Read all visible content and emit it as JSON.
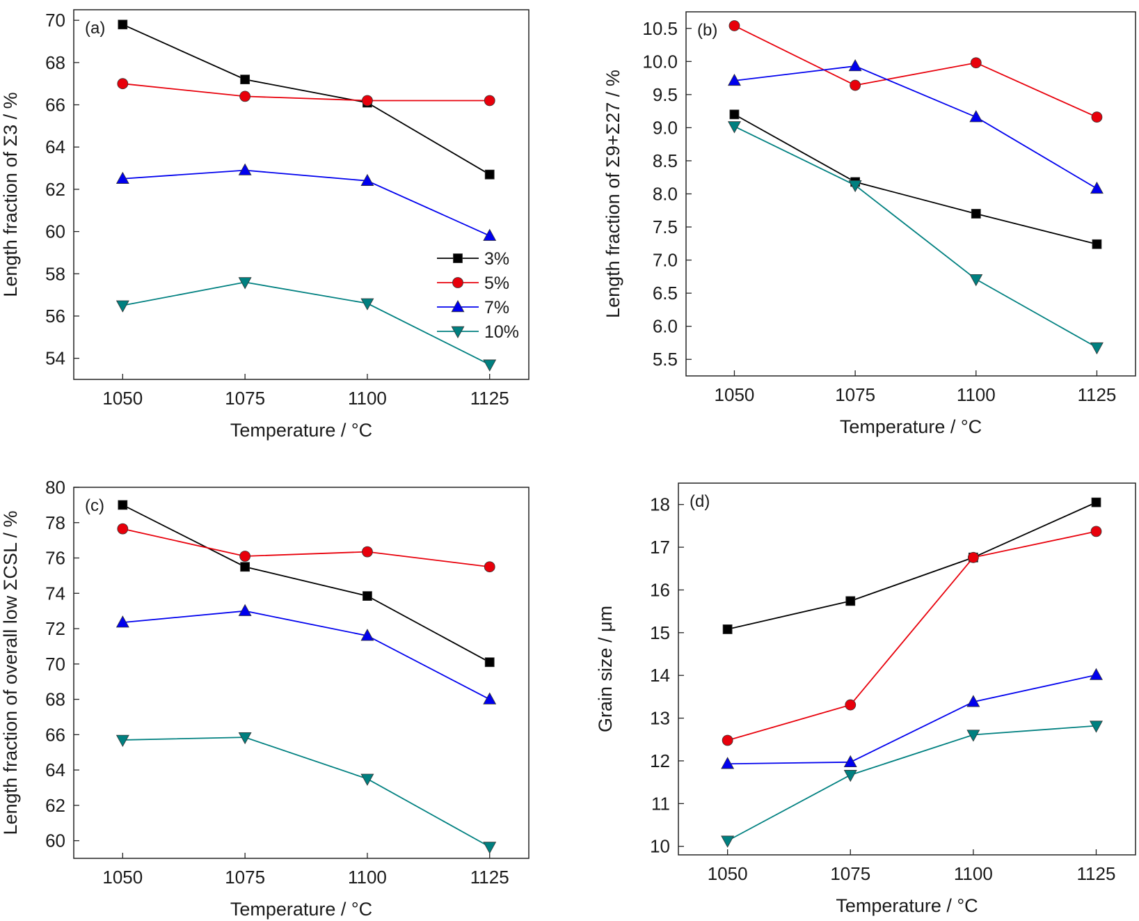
{
  "series_style": [
    {
      "color": "#000000",
      "marker": "square"
    },
    {
      "color": "#e8000b",
      "marker": "circle"
    },
    {
      "color": "#0000ee",
      "marker": "triangle-up"
    },
    {
      "color": "#008080",
      "marker": "triangle-down"
    }
  ],
  "legend": {
    "placement": "center-right of panel (a)",
    "labels": [
      "3%",
      "5%",
      "7%",
      "10%"
    ]
  },
  "chart_data": [
    {
      "type": "line",
      "panel_label": "(a)",
      "xlabel": "Temperature / °C",
      "ylabel": "Length fraction of Σ3 / %",
      "x": [
        1050,
        1075,
        1100,
        1125
      ],
      "xlim": [
        1040,
        1133
      ],
      "ylim": [
        53,
        70.5
      ],
      "yticks": [
        "54",
        "56",
        "58",
        "60",
        "62",
        "64",
        "66",
        "68",
        "70"
      ],
      "xticks": [
        "1050",
        "1075",
        "1100",
        "1125"
      ],
      "series": [
        {
          "name": "3%",
          "values": [
            69.8,
            67.2,
            66.1,
            62.7
          ]
        },
        {
          "name": "5%",
          "values": [
            67.0,
            66.4,
            66.2,
            66.2
          ]
        },
        {
          "name": "7%",
          "values": [
            62.5,
            62.9,
            62.4,
            59.8
          ]
        },
        {
          "name": "10%",
          "values": [
            56.5,
            57.6,
            56.6,
            53.7
          ]
        }
      ]
    },
    {
      "type": "line",
      "panel_label": "(b)",
      "xlabel": "Temperature / °C",
      "ylabel": "Length fraction of Σ9+Σ27 / %",
      "x": [
        1050,
        1075,
        1100,
        1125
      ],
      "xlim": [
        1040,
        1133
      ],
      "ylim": [
        5.25,
        10.75
      ],
      "yticks": [
        "5.5",
        "6.0",
        "6.5",
        "7.0",
        "7.5",
        "8.0",
        "8.5",
        "9.0",
        "9.5",
        "10.0",
        "10.5"
      ],
      "xticks": [
        "1050",
        "1075",
        "1100",
        "1125"
      ],
      "series": [
        {
          "name": "3%",
          "values": [
            9.2,
            8.18,
            7.7,
            7.24
          ]
        },
        {
          "name": "5%",
          "values": [
            10.54,
            9.64,
            9.98,
            9.16
          ]
        },
        {
          "name": "7%",
          "values": [
            9.71,
            9.93,
            9.16,
            8.08
          ]
        },
        {
          "name": "10%",
          "values": [
            9.02,
            8.13,
            6.71,
            5.68
          ]
        }
      ]
    },
    {
      "type": "line",
      "panel_label": "(c)",
      "xlabel": "Temperature / °C",
      "ylabel": "Length fraction of overall low ΣCSL / %",
      "x": [
        1050,
        1075,
        1100,
        1125
      ],
      "xlim": [
        1040,
        1133
      ],
      "ylim": [
        59,
        80
      ],
      "yticks": [
        "60",
        "62",
        "64",
        "66",
        "68",
        "70",
        "72",
        "74",
        "76",
        "78",
        "80"
      ],
      "xticks": [
        "1050",
        "1075",
        "1100",
        "1125"
      ],
      "series": [
        {
          "name": "3%",
          "values": [
            79.0,
            75.5,
            73.85,
            70.1
          ]
        },
        {
          "name": "5%",
          "values": [
            77.65,
            76.1,
            76.35,
            75.5
          ]
        },
        {
          "name": "7%",
          "values": [
            72.35,
            73.0,
            71.6,
            68.0
          ]
        },
        {
          "name": "10%",
          "values": [
            65.7,
            65.85,
            63.5,
            59.65
          ]
        }
      ]
    },
    {
      "type": "line",
      "panel_label": "(d)",
      "xlabel": "Temperature / °C",
      "ylabel": "Grain size / μm",
      "x": [
        1050,
        1075,
        1100,
        1125
      ],
      "xlim": [
        1040,
        1133
      ],
      "ylim": [
        9.8,
        18.5
      ],
      "yticks": [
        "10",
        "11",
        "12",
        "13",
        "14",
        "15",
        "16",
        "17",
        "18"
      ],
      "xticks": [
        "1050",
        "1075",
        "1100",
        "1125"
      ],
      "series": [
        {
          "name": "3%",
          "values": [
            15.08,
            15.74,
            16.76,
            18.05
          ]
        },
        {
          "name": "5%",
          "values": [
            12.48,
            13.31,
            16.76,
            17.37
          ]
        },
        {
          "name": "7%",
          "values": [
            11.93,
            11.97,
            13.38,
            14.01
          ]
        },
        {
          "name": "10%",
          "values": [
            10.13,
            11.67,
            12.61,
            12.82
          ]
        }
      ]
    }
  ]
}
